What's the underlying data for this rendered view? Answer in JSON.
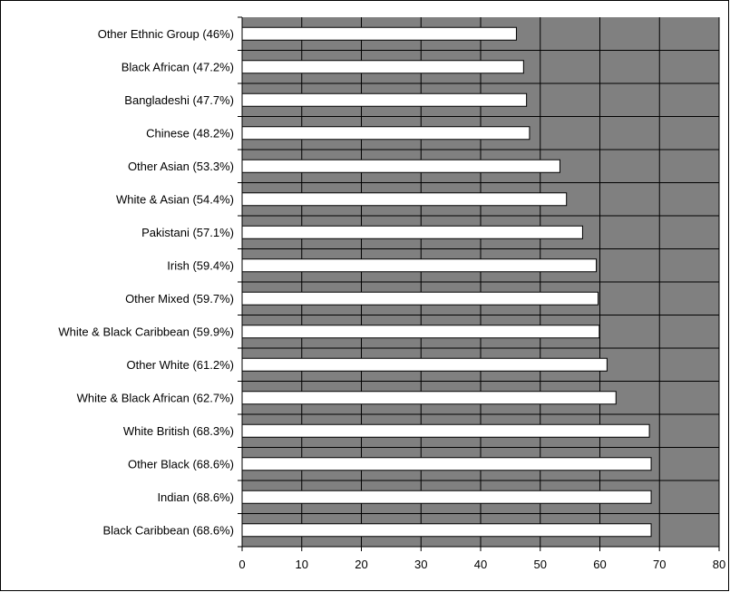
{
  "chart_data": {
    "type": "bar",
    "orientation": "horizontal",
    "title": "",
    "xlabel": "",
    "ylabel": "",
    "categories": [
      "Other Ethnic Group (46%)",
      "Black African (47.2%)",
      "Bangladeshi (47.7%)",
      "Chinese (48.2%)",
      "Other Asian (53.3%)",
      "White & Asian (54.4%)",
      "Pakistani (57.1%)",
      "Irish (59.4%)",
      "Other Mixed (59.7%)",
      "White & Black Caribbean (59.9%)",
      "Other White (61.2%)",
      "White & Black African (62.7%)",
      "White British (68.3%)",
      "Other Black (68.6%)",
      "Indian (68.6%)",
      "Black Caribbean (68.6%)"
    ],
    "values": [
      46,
      47.2,
      47.7,
      48.2,
      53.3,
      54.4,
      57.1,
      59.4,
      59.7,
      59.9,
      61.2,
      62.7,
      68.3,
      68.6,
      68.6,
      68.6
    ],
    "xlim": [
      0,
      80
    ],
    "xticks": [
      "0",
      "10",
      "20",
      "30",
      "40",
      "50",
      "60",
      "70",
      "80"
    ],
    "grid": true,
    "legend": "none",
    "colors": {
      "plot_background": "#808080",
      "bar_fill": "#ffffff",
      "bar_stroke": "#000000",
      "gridline": "#000000"
    }
  }
}
